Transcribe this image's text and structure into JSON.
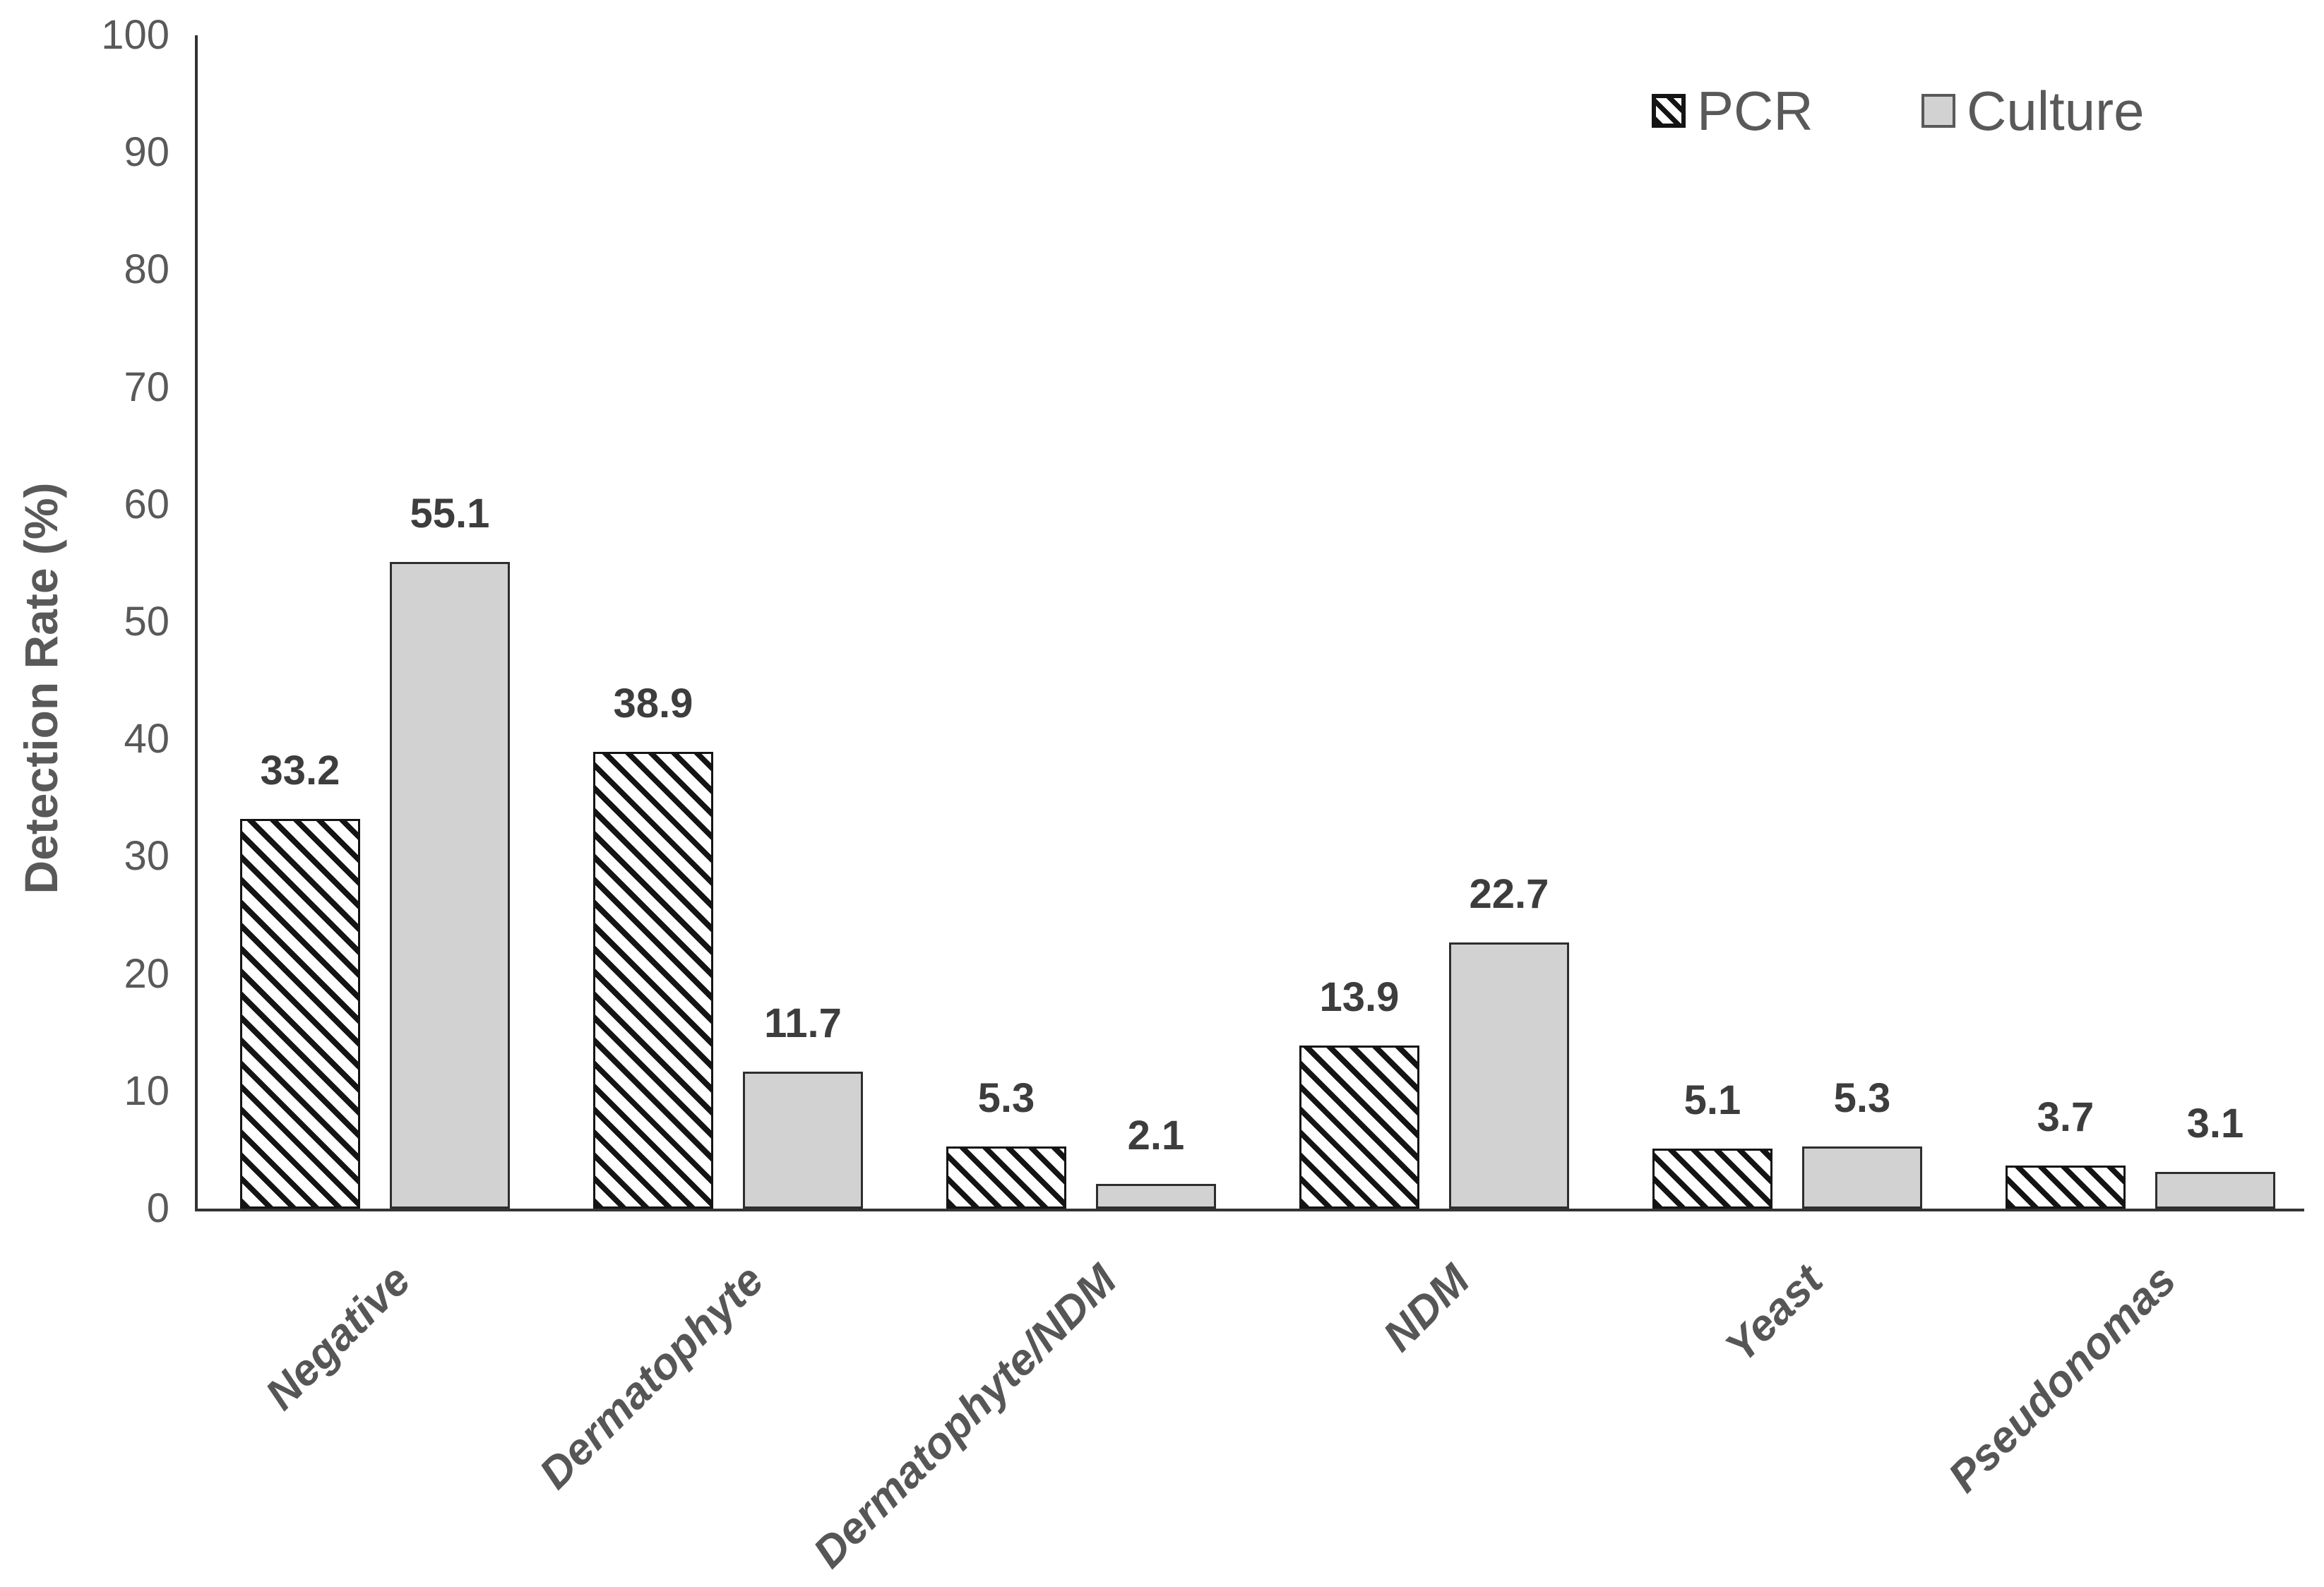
{
  "chart_data": {
    "type": "bar",
    "title": "",
    "xlabel": "",
    "ylabel": "Detection Rate (%)",
    "ylim": [
      0,
      100
    ],
    "ytick_step": 10,
    "grid": false,
    "legend_position": "top-right",
    "categories": [
      "Negative",
      "Dermatophyte",
      "Dermatophyte/NDM",
      "NDM",
      "Yeast",
      "Pseudonomas"
    ],
    "series": [
      {
        "name": "PCR",
        "style": "black-diagonal-hatch",
        "values": [
          33.2,
          38.9,
          5.3,
          13.9,
          5.1,
          3.7
        ]
      },
      {
        "name": "Culture",
        "style": "solid-light-gray",
        "values": [
          55.1,
          11.7,
          2.1,
          22.7,
          5.3,
          3.1
        ]
      }
    ],
    "value_label_decimals": 1,
    "colors": {
      "culture_fill": "#d2d2d2",
      "hatch_line": "#141414",
      "bar_border": "#1c1c1c",
      "axis": "#333333",
      "tick_text": "#595959",
      "data_label_text": "#3d3d3d",
      "category_text": "#565656",
      "legend_text": "#595959"
    }
  }
}
